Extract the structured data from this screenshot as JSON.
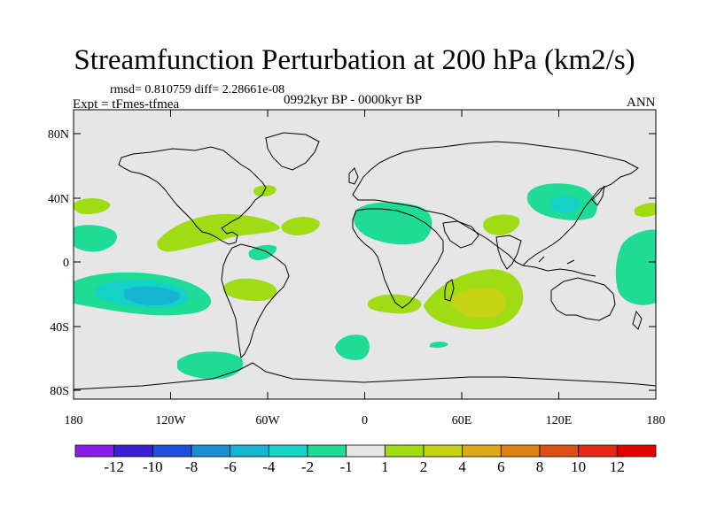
{
  "title": "Streamfunction Perturbation at 200 hPa (km2/s)",
  "stats": "rmsd= 0.810759 diff= 2.28661e-08",
  "left_label": "Expt = tFmes-tfmea",
  "center_label": "0992kyr BP - 0000kyr BP",
  "right_label": "ANN",
  "lat_ticks": [
    "80N",
    "40N",
    "0",
    "40S",
    "80S"
  ],
  "lon_ticks": [
    "180",
    "120W",
    "60W",
    "0",
    "60E",
    "120E",
    "180"
  ],
  "colorbar": {
    "labels": [
      "-12",
      "-10",
      "-8",
      "-6",
      "-4",
      "-2",
      "-1",
      "1",
      "2",
      "4",
      "6",
      "8",
      "10",
      "12"
    ],
    "colors": [
      "#8b1ee6",
      "#3c1ed2",
      "#1e50dc",
      "#1e8cd2",
      "#14b4d2",
      "#14d2c8",
      "#1edc96",
      "#e6e6e6",
      "#a0dc14",
      "#c8d214",
      "#dcaa14",
      "#dc8214",
      "#dc5014",
      "#e62814",
      "#e60000"
    ]
  },
  "chart_data": {
    "type": "heatmap",
    "title": "Streamfunction Perturbation at 200 hPa (km2/s)",
    "variable": "Streamfunction Perturbation",
    "units": "km2/s",
    "level": "200 hPa",
    "xlim": [
      -180,
      180
    ],
    "ylim": [
      -90,
      90
    ],
    "xlabel": "",
    "ylabel": "",
    "levels": [
      -12,
      -10,
      -8,
      -6,
      -4,
      -2,
      -1,
      1,
      2,
      4,
      6,
      8,
      10,
      12
    ],
    "features": [
      {
        "name": "south-pacific-low",
        "sign": "negative",
        "lon": -140,
        "lat": -23,
        "min_level": -4
      },
      {
        "name": "southern-indian-high",
        "sign": "positive",
        "lon": 62,
        "lat": -24,
        "max_level": 4
      },
      {
        "name": "east-asia-low",
        "sign": "negative",
        "lon": 125,
        "lat": 37,
        "min_level": -4
      },
      {
        "name": "north-africa-low",
        "sign": "negative",
        "lon": 12,
        "lat": 30,
        "min_level": -2
      },
      {
        "name": "south-pacific-polar-low",
        "sign": "negative",
        "lon": -95,
        "lat": -62,
        "min_level": -2
      }
    ]
  }
}
